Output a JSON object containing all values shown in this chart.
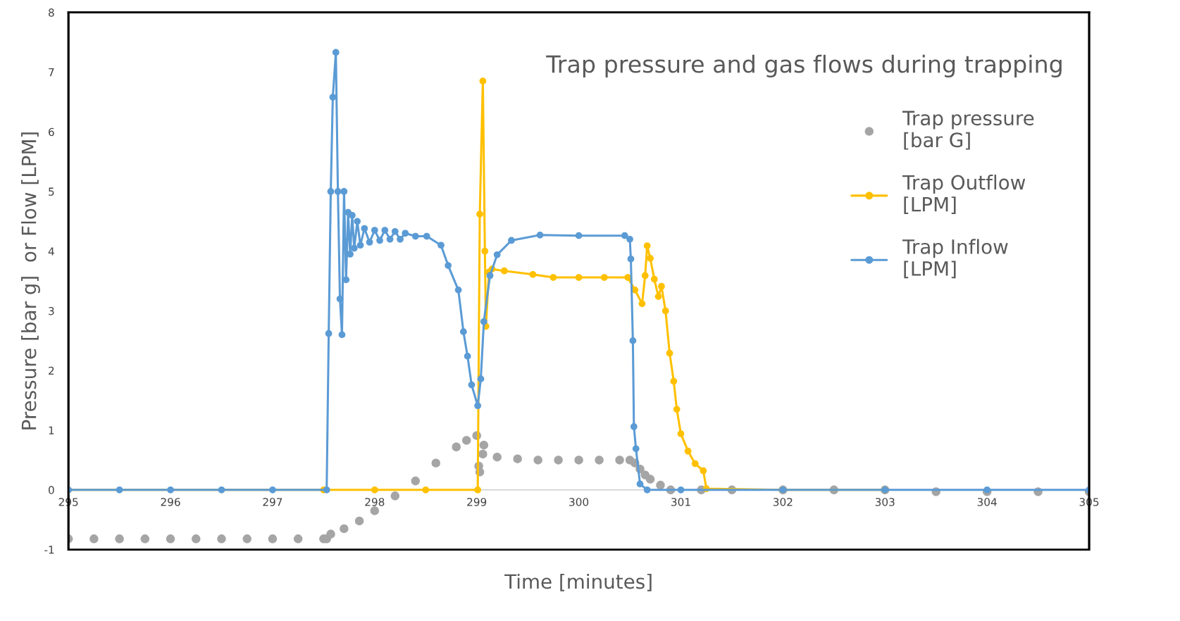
{
  "chart_data": {
    "type": "line",
    "title": "Trap pressure and gas flows during trapping",
    "xlabel": "Time [minutes]",
    "ylabel": "Pressure [bar g]  or Flow [LPM]",
    "xlim": [
      295,
      305
    ],
    "xticks": [
      295,
      296,
      297,
      298,
      299,
      300,
      301,
      302,
      303,
      304,
      305
    ],
    "ylim": [
      -1,
      8
    ],
    "yticks": [
      -1,
      0,
      1,
      2,
      3,
      4,
      5,
      6,
      7,
      8
    ],
    "grid": false,
    "legend": "right",
    "marker": "circle",
    "series": [
      {
        "name": "Trap pressure\n[bar G]",
        "type": "scatter",
        "color": "#a5a5a5",
        "x": [
          295,
          295.25,
          295.5,
          295.75,
          296,
          296.25,
          296.5,
          296.75,
          297,
          297.25,
          297.5,
          297.53,
          297.57,
          297.7,
          297.85,
          298.0,
          298.2,
          298.4,
          298.6,
          298.8,
          298.9,
          299.0,
          299.02,
          299.03,
          299.06,
          299.07,
          299.2,
          299.4,
          299.6,
          299.8,
          300.0,
          300.2,
          300.4,
          300.5,
          300.55,
          300.6,
          300.65,
          300.7,
          300.8,
          300.9,
          301.2,
          301.5,
          302.0,
          302.5,
          303.0,
          303.5,
          304.0,
          304.5,
          305.0
        ],
        "values": [
          -0.82,
          -0.82,
          -0.82,
          -0.82,
          -0.82,
          -0.82,
          -0.82,
          -0.82,
          -0.82,
          -0.82,
          -0.82,
          -0.82,
          -0.74,
          -0.65,
          -0.52,
          -0.35,
          -0.1,
          0.15,
          0.45,
          0.72,
          0.83,
          0.91,
          0.4,
          0.3,
          0.6,
          0.75,
          0.55,
          0.52,
          0.5,
          0.5,
          0.5,
          0.5,
          0.5,
          0.5,
          0.45,
          0.35,
          0.25,
          0.18,
          0.08,
          0.0,
          0.0,
          0.0,
          0.0,
          0.0,
          0.0,
          -0.03,
          -0.03,
          -0.03,
          -0.03
        ]
      },
      {
        "name": "Trap Outflow\n[LPM]",
        "color": "#ffc000",
        "x": [
          295,
          297.5,
          298.0,
          298.5,
          299.01,
          299.03,
          299.06,
          299.08,
          299.09,
          299.12,
          299.15,
          299.27,
          299.55,
          299.75,
          300.0,
          300.25,
          300.48,
          300.55,
          300.62,
          300.65,
          300.67,
          300.7,
          300.74,
          300.78,
          300.81,
          300.85,
          300.89,
          300.93,
          300.96,
          301.0,
          301.07,
          301.14,
          301.22,
          301.25,
          302,
          303
        ],
        "values": [
          0,
          0,
          0,
          0,
          0,
          4.62,
          6.85,
          4.0,
          2.74,
          3.65,
          3.7,
          3.67,
          3.61,
          3.56,
          3.56,
          3.56,
          3.56,
          3.35,
          3.12,
          3.59,
          4.09,
          3.88,
          3.53,
          3.24,
          3.41,
          3.0,
          2.29,
          1.82,
          1.35,
          0.94,
          0.65,
          0.44,
          0.32,
          0.02,
          0,
          0
        ]
      },
      {
        "name": "Trap Inflow\n[LPM]",
        "color": "#5b9bd5",
        "x": [
          295,
          295.5,
          296,
          296.5,
          297,
          297.53,
          297.55,
          297.57,
          297.59,
          297.62,
          297.64,
          297.66,
          297.68,
          297.7,
          297.72,
          297.74,
          297.76,
          297.78,
          297.8,
          297.83,
          297.86,
          297.9,
          297.95,
          298.0,
          298.05,
          298.1,
          298.15,
          298.2,
          298.25,
          298.3,
          298.4,
          298.51,
          298.65,
          298.72,
          298.82,
          298.87,
          298.91,
          298.95,
          299.01,
          299.04,
          299.07,
          299.13,
          299.2,
          299.34,
          299.62,
          300.0,
          300.45,
          300.5,
          300.51,
          300.53,
          300.54,
          300.56,
          300.6,
          300.67,
          301,
          302,
          303,
          304,
          305
        ],
        "values": [
          0,
          0,
          0,
          0,
          0,
          0,
          2.62,
          5.0,
          6.58,
          7.33,
          5.0,
          3.2,
          2.6,
          5.0,
          3.52,
          4.65,
          3.95,
          4.6,
          4.05,
          4.5,
          4.1,
          4.38,
          4.15,
          4.35,
          4.18,
          4.35,
          4.2,
          4.33,
          4.2,
          4.3,
          4.25,
          4.25,
          4.1,
          3.76,
          3.35,
          2.65,
          2.24,
          1.76,
          1.41,
          1.86,
          2.82,
          3.59,
          3.94,
          4.18,
          4.27,
          4.26,
          4.26,
          4.2,
          3.87,
          2.5,
          1.06,
          0.69,
          0.1,
          0.0,
          0.0,
          0.0,
          0.0,
          0.0,
          0.0
        ]
      }
    ]
  }
}
